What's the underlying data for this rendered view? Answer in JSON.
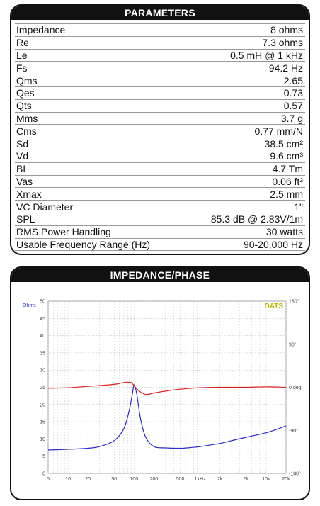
{
  "parameters": {
    "title": "PARAMETERS",
    "rows": [
      {
        "label": "Impedance",
        "value": "8 ohms"
      },
      {
        "label": "Re",
        "value": "7.3 ohms"
      },
      {
        "label": "Le",
        "value": "0.5 mH @ 1 kHz"
      },
      {
        "label": "Fs",
        "value": "94.2 Hz"
      },
      {
        "label": "Qms",
        "value": "2.65"
      },
      {
        "label": "Qes",
        "value": "0.73"
      },
      {
        "label": "Qts",
        "value": "0.57"
      },
      {
        "label": "Mms",
        "value": "3.7 g"
      },
      {
        "label": "Cms",
        "value": "0.77 mm/N"
      },
      {
        "label": "Sd",
        "value": "38.5 cm²"
      },
      {
        "label": "Vd",
        "value": "9.6 cm³"
      },
      {
        "label": "BL",
        "value": "4.7 Tm"
      },
      {
        "label": "Vas",
        "value": "0.06 ft³"
      },
      {
        "label": "Xmax",
        "value": "2.5 mm"
      },
      {
        "label": "VC Diameter",
        "value": "1\""
      },
      {
        "label": "SPL",
        "value": "85.3 dB @ 2.83V/1m"
      },
      {
        "label": "RMS Power Handling",
        "value": "30 watts"
      },
      {
        "label": "Usable Frequency Range (Hz)",
        "value": "90-20,000 Hz"
      }
    ]
  },
  "chart_panel": {
    "title": "IMPEDANCE/PHASE"
  },
  "chart_data": {
    "type": "line",
    "title": "",
    "xlabel": "",
    "ylabel": "Ohms",
    "x_scale": "log",
    "xlim": [
      5,
      20000
    ],
    "ylim": [
      0,
      50
    ],
    "y2lim": [
      -180,
      180
    ],
    "grid": true,
    "brand_label": "DATS",
    "x_ticks": [
      {
        "value": 5,
        "label": "5"
      },
      {
        "value": 10,
        "label": "10"
      },
      {
        "value": 20,
        "label": "20"
      },
      {
        "value": 50,
        "label": "50"
      },
      {
        "value": 100,
        "label": "100"
      },
      {
        "value": 200,
        "label": "200"
      },
      {
        "value": 500,
        "label": "500"
      },
      {
        "value": 1000,
        "label": "1kHz"
      },
      {
        "value": 2000,
        "label": "2k"
      },
      {
        "value": 5000,
        "label": "5k"
      },
      {
        "value": 10000,
        "label": "10k"
      },
      {
        "value": 20000,
        "label": "20k"
      }
    ],
    "y_ticks": [
      {
        "value": 0,
        "label": "0"
      },
      {
        "value": 5,
        "label": "5"
      },
      {
        "value": 10,
        "label": "10"
      },
      {
        "value": 15,
        "label": "15"
      },
      {
        "value": 20,
        "label": "20"
      },
      {
        "value": 25,
        "label": "25"
      },
      {
        "value": 30,
        "label": "30"
      },
      {
        "value": 35,
        "label": "35"
      },
      {
        "value": 40,
        "label": "40"
      },
      {
        "value": 45,
        "label": "45"
      },
      {
        "value": 50,
        "label": "50"
      }
    ],
    "y2_ticks": [
      {
        "value": 180,
        "label": "180°"
      },
      {
        "value": 90,
        "label": "90°"
      },
      {
        "value": 0,
        "label": "0 deg"
      },
      {
        "value": -90,
        "label": "-90°"
      },
      {
        "value": -180,
        "label": "-180°"
      }
    ],
    "series": [
      {
        "id": "impedance",
        "color": "#2b2bcc",
        "axis": "left",
        "x": [
          5,
          10,
          20,
          30,
          50,
          70,
          85,
          95,
          100,
          110,
          125,
          150,
          200,
          300,
          500,
          700,
          1000,
          2000,
          3000,
          5000,
          10000,
          15000,
          20000
        ],
        "y": [
          6.8,
          7.0,
          7.3,
          7.8,
          9.5,
          13.0,
          18.5,
          23.5,
          25.7,
          23.0,
          16.0,
          10.5,
          7.8,
          7.4,
          7.3,
          7.5,
          7.8,
          8.7,
          9.5,
          10.5,
          11.8,
          12.9,
          13.8
        ]
      },
      {
        "id": "phase",
        "color": "#dd2222",
        "axis": "right",
        "x": [
          5,
          10,
          20,
          50,
          70,
          90,
          100,
          120,
          150,
          200,
          300,
          500,
          1000,
          2000,
          5000,
          10000,
          20000
        ],
        "y": [
          -2,
          -1,
          2,
          6,
          10,
          10,
          3,
          -8,
          -15,
          -12,
          -8,
          -4,
          -1,
          0,
          0,
          1,
          0
        ]
      }
    ]
  }
}
